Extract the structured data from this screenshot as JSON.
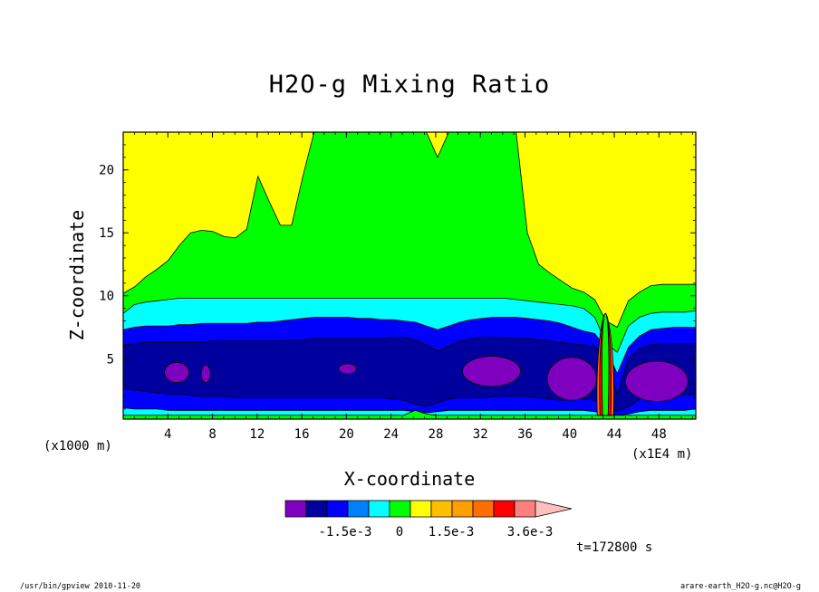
{
  "chart_data": {
    "type": "heatmap",
    "title": "H2O-g Mixing Ratio",
    "xlabel": "X-coordinate",
    "ylabel": "Z-coordinate",
    "y_unit": "(x1000 m)",
    "x_unit": "(x1E4 m)",
    "x_ticks": [
      "4",
      "8",
      "12",
      "16",
      "20",
      "24",
      "28",
      "32",
      "36",
      "40",
      "44",
      "48"
    ],
    "x_tick_values": [
      4,
      8,
      12,
      16,
      20,
      24,
      28,
      32,
      36,
      40,
      44,
      48
    ],
    "y_ticks": [
      "5",
      "10",
      "15",
      "20"
    ],
    "y_tick_values": [
      5,
      10,
      15,
      20
    ],
    "xlim": [
      0,
      51.3
    ],
    "ylim": [
      0.2,
      23.0
    ],
    "colorbar": {
      "labels": [
        "-1.5e-3",
        "0",
        "1.5e-3",
        "3.6e-3"
      ],
      "colors": [
        "#7f00bf",
        "#00009f",
        "#0000ff",
        "#0080ff",
        "#00ffff",
        "#00ff00",
        "#ffff00",
        "#ffbf00",
        "#ff9f00",
        "#ff6f00",
        "#ff0000",
        "#ff7f7f",
        "#ffbfbf"
      ]
    },
    "layers": [
      {
        "name": "yellow",
        "color": "#ffff00",
        "top": [
          23,
          23,
          23,
          23,
          23,
          23,
          23,
          23,
          23,
          23,
          23,
          23,
          23,
          23,
          23,
          23,
          23,
          23,
          23,
          23,
          23,
          23,
          23,
          23,
          23,
          23,
          23,
          23,
          23,
          23,
          23,
          23,
          23,
          23,
          23,
          23,
          23,
          23,
          23,
          23,
          23,
          23,
          23,
          23,
          23,
          23,
          23,
          23,
          23,
          23,
          23,
          23
        ]
      },
      {
        "name": "green",
        "color": "#00ff00",
        "top": [
          10.2,
          10.7,
          11.5,
          12.1,
          12.8,
          14,
          15,
          15.2,
          15.1,
          14.7,
          14.6,
          15.3,
          19.5,
          17.5,
          15.6,
          15.6,
          19.5,
          23,
          23,
          23,
          23,
          23,
          23,
          23,
          23,
          23,
          23,
          23,
          21,
          23,
          23,
          23,
          23,
          23,
          23,
          23,
          15,
          12.5,
          11.8,
          11.2,
          10.6,
          10.3,
          9.7,
          8,
          7.5,
          9.6,
          10.3,
          10.8,
          10.9,
          10.9,
          10.9,
          10.9
        ]
      },
      {
        "name": "cyan",
        "color": "#00ffff",
        "top": [
          8.6,
          9.3,
          9.5,
          9.6,
          9.7,
          9.8,
          9.8,
          9.8,
          9.8,
          9.8,
          9.8,
          9.8,
          9.8,
          9.8,
          9.8,
          9.8,
          9.8,
          9.8,
          9.8,
          9.8,
          9.8,
          9.8,
          9.8,
          9.8,
          9.8,
          9.8,
          9.8,
          9.8,
          9.8,
          9.8,
          9.8,
          9.8,
          9.8,
          9.8,
          9.8,
          9.7,
          9.6,
          9.5,
          9.4,
          9.3,
          9.2,
          9,
          8.3,
          6.2,
          5.5,
          7.6,
          8.3,
          8.6,
          8.7,
          8.7,
          8.7,
          8.8
        ]
      },
      {
        "name": "blue",
        "color": "#0000ff",
        "top": [
          7.3,
          7.5,
          7.6,
          7.6,
          7.6,
          7.7,
          7.7,
          7.8,
          7.8,
          7.8,
          7.8,
          7.8,
          7.9,
          7.9,
          8,
          8.1,
          8.2,
          8.3,
          8.3,
          8.3,
          8.3,
          8.2,
          8.2,
          8.1,
          8.1,
          8,
          7.9,
          7.6,
          7.3,
          7.6,
          7.9,
          8.1,
          8.2,
          8.3,
          8.3,
          8.3,
          8.2,
          8.1,
          8,
          7.8,
          7.5,
          7.2,
          7,
          5.8,
          3.8,
          5.9,
          6.8,
          7.3,
          7.4,
          7.5,
          7.5,
          7.5
        ]
      },
      {
        "name": "navy",
        "color": "#00009f",
        "top": [
          6.1,
          6.2,
          6.3,
          6.3,
          6.3,
          6.3,
          6.3,
          6.3,
          6.4,
          6.4,
          6.4,
          6.4,
          6.4,
          6.4,
          6.4,
          6.5,
          6.5,
          6.6,
          6.6,
          6.6,
          6.6,
          6.6,
          6.6,
          6.6,
          6.7,
          6.7,
          6.5,
          6.1,
          5.6,
          6,
          6.4,
          6.6,
          6.7,
          6.7,
          6.7,
          6.6,
          6.6,
          6.5,
          6.4,
          6.3,
          6.2,
          6.1,
          6,
          5,
          2.2,
          5,
          5.8,
          6.1,
          6.2,
          6.2,
          6.2,
          6.2
        ]
      },
      {
        "name": "blue2",
        "color": "#0000ff",
        "top": [
          2.6,
          2.5,
          2.4,
          2.3,
          2.2,
          2.2,
          2.1,
          2,
          2,
          2,
          1.9,
          1.9,
          1.9,
          1.9,
          1.9,
          1.9,
          1.9,
          1.9,
          1.9,
          1.9,
          1.9,
          1.9,
          1.9,
          1.9,
          1.8,
          1.7,
          1.4,
          1.2,
          1.5,
          1.8,
          1.9,
          1.9,
          1.9,
          2,
          2,
          2,
          2,
          1.9,
          1.8,
          1.7,
          1.7,
          1.8,
          1.7,
          1.2,
          0.8,
          1.2,
          1.8,
          2,
          2,
          2,
          2.1,
          2.2
        ]
      },
      {
        "name": "cyan2",
        "color": "#00ffff",
        "top": [
          1.1,
          1,
          1,
          1,
          0.9,
          0.9,
          0.9,
          0.9,
          0.9,
          0.9,
          0.9,
          0.9,
          0.9,
          0.9,
          0.9,
          0.9,
          0.9,
          0.9,
          0.9,
          0.9,
          0.9,
          0.9,
          0.9,
          0.9,
          0.9,
          0.9,
          0.8,
          0.7,
          0.8,
          0.9,
          0.9,
          0.9,
          0.9,
          0.9,
          0.9,
          0.9,
          0.9,
          0.9,
          0.9,
          0.9,
          0.9,
          0.9,
          0.8,
          0.6,
          0.5,
          0.6,
          0.8,
          0.9,
          0.9,
          0.9,
          0.9,
          1
        ]
      },
      {
        "name": "green2",
        "color": "#00ff00",
        "top": [
          0.5,
          0.5,
          0.5,
          0.5,
          0.5,
          0.5,
          0.5,
          0.5,
          0.5,
          0.5,
          0.5,
          0.5,
          0.5,
          0.5,
          0.5,
          0.5,
          0.5,
          0.5,
          0.5,
          0.5,
          0.5,
          0.5,
          0.5,
          0.5,
          0.5,
          0.5,
          0.9,
          0.6,
          0.5,
          0.5,
          0.5,
          0.5,
          0.5,
          0.5,
          0.5,
          0.5,
          0.5,
          0.5,
          0.5,
          0.5,
          0.5,
          0.5,
          0.5,
          0.5,
          0.5,
          0.5,
          0.5,
          0.5,
          0.5,
          0.5,
          0.5,
          0.5
        ]
      }
    ],
    "purple_blobs": [
      {
        "x": 4.8,
        "z": 3.9,
        "rx": 1.1,
        "rz": 0.8
      },
      {
        "x": 7.4,
        "z": 3.8,
        "rx": 0.4,
        "rz": 0.7
      },
      {
        "x": 20.1,
        "z": 4.2,
        "rx": 0.8,
        "rz": 0.4
      },
      {
        "x": 33,
        "z": 4,
        "rx": 2.6,
        "rz": 1.2
      },
      {
        "x": 40.2,
        "z": 3.4,
        "rx": 2.2,
        "rz": 1.7
      },
      {
        "x": 47.8,
        "z": 3.2,
        "rx": 2.8,
        "rz": 1.6
      }
    ],
    "plume": {
      "x": 43.2,
      "zmin": 0.5,
      "zmax": 8.6,
      "colors": [
        "#ff6f00",
        "#ff0000",
        "#00ff00"
      ]
    }
  },
  "footer": {
    "time_label": "t=172800 s",
    "left": "/usr/bin/gpview  2010-11-20",
    "right": "arare-earth_H2O-g.nc@H2O-g"
  }
}
